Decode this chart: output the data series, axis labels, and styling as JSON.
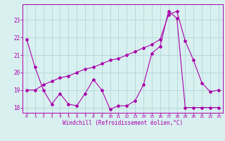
{
  "x": [
    0,
    1,
    2,
    3,
    4,
    5,
    6,
    7,
    8,
    9,
    10,
    11,
    12,
    13,
    14,
    15,
    16,
    17,
    18,
    19,
    20,
    21,
    22,
    23
  ],
  "line1": [
    21.9,
    20.3,
    19.0,
    18.2,
    18.8,
    18.2,
    18.1,
    18.8,
    19.6,
    19.0,
    17.9,
    18.1,
    18.1,
    18.4,
    19.3,
    21.1,
    21.5,
    23.5,
    23.1,
    18.0,
    18.0,
    18.0,
    18.0,
    18.0
  ],
  "line2": [
    19.0,
    19.0,
    19.3,
    19.5,
    19.7,
    19.8,
    20.0,
    20.2,
    20.3,
    20.5,
    20.7,
    20.8,
    21.0,
    21.2,
    21.4,
    21.6,
    21.9,
    23.3,
    23.5,
    21.8,
    20.7,
    19.4,
    18.9,
    19.0
  ],
  "color": "#aa00aa",
  "bg_color": "#d8f0f0",
  "grid_color": "#b8dada",
  "ylim": [
    17.7,
    23.9
  ],
  "yticks": [
    18,
    19,
    20,
    21,
    22,
    23
  ],
  "xtick_labels": [
    "0",
    "1",
    "2",
    "3",
    "4",
    "5",
    "6",
    "7",
    "8",
    "9",
    "10",
    "11",
    "12",
    "13",
    "14",
    "15",
    "16",
    "17",
    "18",
    "19",
    "20",
    "21",
    "22",
    "23"
  ],
  "xlabel": "Windchill (Refroidissement éolien,°C)",
  "marker": "D",
  "markersize": 2.0,
  "linewidth": 0.8
}
